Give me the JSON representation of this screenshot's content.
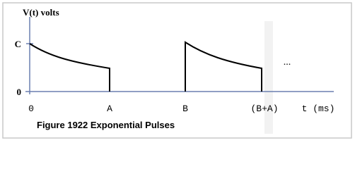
{
  "axes": {
    "y_label": "V(t) volts",
    "y_ticks": [
      "C",
      "0"
    ],
    "x_ticks": [
      "0",
      "A",
      "B",
      "(B+A)"
    ],
    "x_label": "t (ms)"
  },
  "continuation": "...",
  "caption": "Figure 1922 Exponential Pulses"
}
